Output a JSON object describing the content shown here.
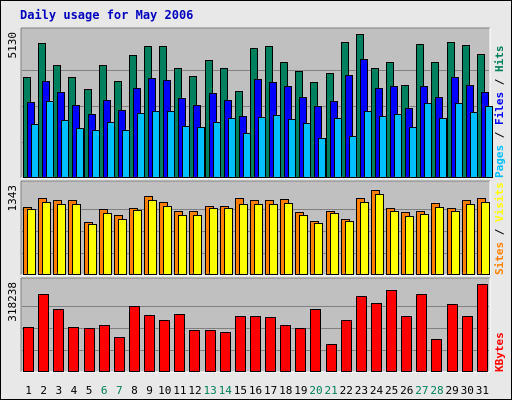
{
  "colors": {
    "background": "#e8e8e8",
    "panel": "#c0c0c0",
    "frame_light": "#ffffff",
    "frame_dark": "#808080",
    "gridline": "#808080",
    "title": "#0000c0",
    "day_weekday": "#000000",
    "day_weekend": "#00805c",
    "hits": "#00805c",
    "files": "#0000ff",
    "pages": "#00c0ff",
    "sites": "#ff8000",
    "visits": "#ffff00",
    "kbytes": "#ff0000"
  },
  "chart_data": {
    "type": "bar",
    "title": "Daily usage for May 2006",
    "categories": [
      "1",
      "2",
      "3",
      "4",
      "5",
      "6",
      "7",
      "8",
      "9",
      "10",
      "11",
      "12",
      "13",
      "14",
      "15",
      "16",
      "17",
      "18",
      "19",
      "20",
      "21",
      "22",
      "23",
      "24",
      "25",
      "26",
      "27",
      "28",
      "29",
      "30",
      "31"
    ],
    "weekend_days": [
      "6",
      "7",
      "13",
      "14",
      "20",
      "21",
      "27",
      "28"
    ],
    "panels": [
      {
        "axis_max_label": "5130",
        "ymax": 5130,
        "legend": [
          "Pages",
          "Files",
          "Hits"
        ],
        "series": [
          {
            "name": "Hits",
            "color": "#00805c",
            "values": [
              3600,
              4820,
              4020,
              3610,
              3160,
              4030,
              3470,
              4390,
              4700,
              4690,
              3920,
              3620,
              4200,
              3930,
              3090,
              4640,
              4690,
              4150,
              3810,
              3420,
              3730,
              4840,
              5130,
              3930,
              4140,
              3300,
              4790,
              4150,
              4840,
              4740,
              4420
            ]
          },
          {
            "name": "Files",
            "color": "#0000ff",
            "values": [
              2720,
              3460,
              3050,
              2590,
              2280,
              2790,
              2440,
              3210,
              3580,
              3480,
              2860,
              2590,
              3020,
              2770,
              2200,
              3530,
              3420,
              3270,
              2880,
              2560,
              2740,
              3670,
              4230,
              3220,
              3290,
              2490,
              3280,
              2870,
              3600,
              3300,
              3050
            ]
          },
          {
            "name": "Pages",
            "color": "#00c0ff",
            "values": [
              1930,
              2750,
              2050,
              1790,
              1700,
              2010,
              1720,
              2310,
              2390,
              2390,
              1850,
              1800,
              2010,
              2120,
              1590,
              2180,
              2230,
              2090,
              1950,
              1440,
              2140,
              1490,
              2400,
              2200,
              2270,
              1820,
              2680,
              2150,
              2660,
              2340,
              2570
            ]
          }
        ]
      },
      {
        "axis_max_label": "1343",
        "ymax": 1343,
        "legend": [
          "Sites",
          "Visits"
        ],
        "series": [
          {
            "name": "Sites",
            "color": "#ff8000",
            "values": [
              1040,
              1170,
              1140,
              1150,
              810,
              1000,
              910,
              1030,
              1200,
              1120,
              970,
              970,
              1050,
              1060,
              1180,
              1140,
              1140,
              1160,
              960,
              830,
              980,
              850,
              1170,
              1290,
              1020,
              960,
              980,
              1100,
              1030,
              1150,
              1170
            ]
          },
          {
            "name": "Visits",
            "color": "#ffff00",
            "values": [
              1000,
              1110,
              1090,
              1080,
              780,
              950,
              860,
              990,
              1140,
              1050,
              920,
              910,
              1020,
              1020,
              1080,
              1090,
              1090,
              1100,
              910,
              790,
              940,
              820,
              1110,
              1230,
              980,
              900,
              930,
              1040,
              980,
              1090,
              1110
            ]
          }
        ]
      },
      {
        "axis_max_label": "318238",
        "ymax": 318238,
        "legend": [
          "KBytes"
        ],
        "series": [
          {
            "name": "KBytes",
            "color": "#ff0000",
            "values": [
              161500,
              283800,
              229600,
              164300,
              158500,
              169000,
              127900,
              240200,
              206600,
              189000,
              211400,
              152500,
              153300,
              145700,
              203600,
              203600,
              197200,
              170800,
              159700,
              226800,
              102800,
              186600,
              273800,
              249000,
              297100,
              203300,
              282000,
              118600,
              246800,
              203300,
              318238
            ]
          }
        ]
      }
    ]
  }
}
